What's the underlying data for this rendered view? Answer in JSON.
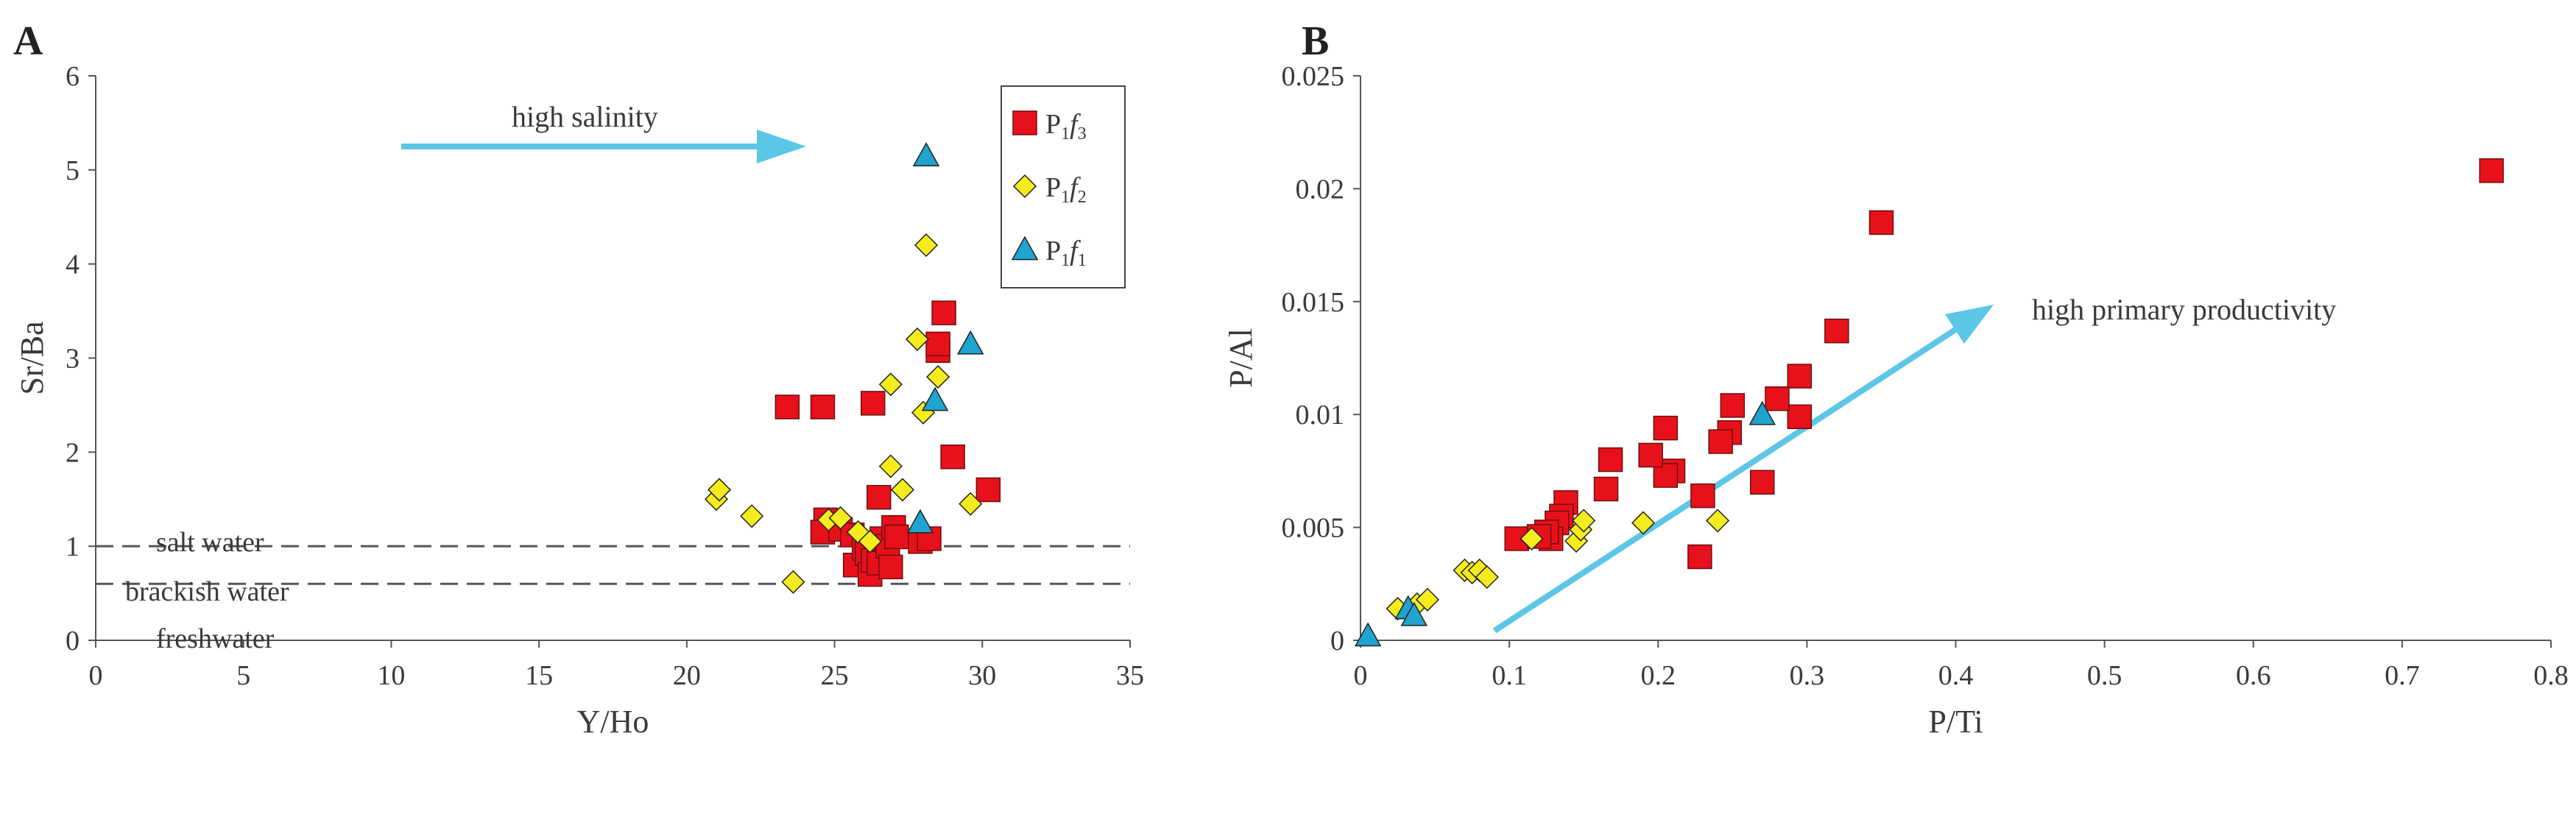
{
  "colors": {
    "p3": "#e8111b",
    "p2": "#f5ec1e",
    "p1": "#1fa3cf",
    "arrow": "#5cc6e6",
    "axis": "#555555"
  },
  "chart_data": [
    {
      "type": "scatter",
      "panel": "A",
      "xlabel": "Y/Ho",
      "ylabel": "Sr/Ba",
      "xlim": [
        0,
        35
      ],
      "ylim": [
        0,
        6
      ],
      "xticks": [
        "0",
        "5",
        "10",
        "15",
        "20",
        "25",
        "30",
        "35"
      ],
      "yticks": [
        "0",
        "1",
        "2",
        "3",
        "4",
        "5",
        "6"
      ],
      "grid": false,
      "legend_position": "top-right",
      "legend": [
        {
          "key": "p3",
          "base": "P",
          "sub": "1",
          "ital": "f",
          "sub2": "3",
          "marker": "square"
        },
        {
          "key": "p2",
          "base": "P",
          "sub": "1",
          "ital": "f",
          "sub2": "2",
          "marker": "diamond"
        },
        {
          "key": "p1",
          "base": "P",
          "sub": "1",
          "ital": "f",
          "sub2": "1",
          "marker": "triangle"
        }
      ],
      "reference_lines": [
        {
          "y": 1.0
        },
        {
          "y": 0.6
        }
      ],
      "zone_labels": [
        "salt water",
        "brackish water",
        "freshwater"
      ],
      "annotation": "high salinity",
      "series": [
        {
          "key": "p3",
          "marker": "square",
          "points": [
            [
              23.4,
              2.48
            ],
            [
              24.6,
              2.48
            ],
            [
              26.3,
              2.52
            ],
            [
              26.5,
              1.52
            ],
            [
              24.7,
              1.28
            ],
            [
              24.6,
              1.15
            ],
            [
              25.2,
              1.18
            ],
            [
              25.6,
              1.12
            ],
            [
              25.7,
              0.8
            ],
            [
              26.0,
              0.98
            ],
            [
              26.1,
              0.92
            ],
            [
              26.2,
              0.7
            ],
            [
              26.3,
              0.85
            ],
            [
              26.5,
              0.82
            ],
            [
              26.6,
              1.08
            ],
            [
              26.8,
              1.0
            ],
            [
              26.9,
              0.78
            ],
            [
              27.0,
              1.2
            ],
            [
              27.1,
              1.1
            ],
            [
              27.9,
              1.05
            ],
            [
              28.2,
              1.08
            ],
            [
              28.5,
              3.08
            ],
            [
              28.5,
              3.15
            ],
            [
              28.7,
              3.48
            ],
            [
              29.0,
              1.95
            ],
            [
              30.2,
              1.6
            ]
          ]
        },
        {
          "key": "p2",
          "marker": "diamond",
          "points": [
            [
              21.0,
              1.5
            ],
            [
              21.1,
              1.6
            ],
            [
              22.2,
              1.32
            ],
            [
              23.6,
              0.62
            ],
            [
              24.8,
              1.28
            ],
            [
              25.2,
              1.3
            ],
            [
              25.8,
              1.15
            ],
            [
              26.2,
              1.05
            ],
            [
              26.9,
              1.85
            ],
            [
              26.9,
              2.72
            ],
            [
              27.3,
              1.6
            ],
            [
              27.8,
              3.2
            ],
            [
              28.0,
              2.42
            ],
            [
              28.1,
              4.2
            ],
            [
              28.5,
              2.8
            ],
            [
              29.6,
              1.45
            ]
          ]
        },
        {
          "key": "p1",
          "marker": "triangle",
          "points": [
            [
              28.1,
              5.15
            ],
            [
              28.4,
              2.55
            ],
            [
              27.9,
              1.25
            ],
            [
              29.6,
              3.15
            ]
          ]
        }
      ]
    },
    {
      "type": "scatter",
      "panel": "B",
      "xlabel": "P/Ti",
      "ylabel": "P/Al",
      "xlim": [
        0,
        0.8
      ],
      "ylim": [
        0,
        0.025
      ],
      "xticks": [
        "0",
        "0.1",
        "0.2",
        "0.3",
        "0.4",
        "0.5",
        "0.6",
        "0.7",
        "0.8"
      ],
      "yticks": [
        "0",
        "0.005",
        "0.01",
        "0.015",
        "0.02",
        "0.025"
      ],
      "grid": false,
      "annotation": "high primary productivity",
      "series": [
        {
          "key": "p3",
          "marker": "square",
          "points": [
            [
              0.76,
              0.0208
            ],
            [
              0.35,
              0.0185
            ],
            [
              0.32,
              0.0137
            ],
            [
              0.295,
              0.0117
            ],
            [
              0.295,
              0.0099
            ],
            [
              0.28,
              0.0107
            ],
            [
              0.27,
              0.007
            ],
            [
              0.25,
              0.0104
            ],
            [
              0.248,
              0.0092
            ],
            [
              0.242,
              0.0088
            ],
            [
              0.23,
              0.0064
            ],
            [
              0.228,
              0.0037
            ],
            [
              0.21,
              0.0075
            ],
            [
              0.205,
              0.0094
            ],
            [
              0.205,
              0.0073
            ],
            [
              0.195,
              0.0082
            ],
            [
              0.168,
              0.008
            ],
            [
              0.165,
              0.0067
            ],
            [
              0.138,
              0.0061
            ],
            [
              0.135,
              0.0055
            ],
            [
              0.132,
              0.0052
            ],
            [
              0.128,
              0.0045
            ],
            [
              0.125,
              0.0048
            ],
            [
              0.105,
              0.0045
            ],
            [
              0.12,
              0.0046
            ]
          ]
        },
        {
          "key": "p2",
          "marker": "diamond",
          "points": [
            [
              0.025,
              0.0014
            ],
            [
              0.038,
              0.0016
            ],
            [
              0.045,
              0.0018
            ],
            [
              0.07,
              0.0031
            ],
            [
              0.075,
              0.003
            ],
            [
              0.08,
              0.0031
            ],
            [
              0.085,
              0.0028
            ],
            [
              0.115,
              0.0045
            ],
            [
              0.145,
              0.0044
            ],
            [
              0.148,
              0.0049
            ],
            [
              0.15,
              0.0053
            ],
            [
              0.19,
              0.0052
            ],
            [
              0.24,
              0.0053
            ]
          ]
        },
        {
          "key": "p1",
          "marker": "triangle",
          "points": [
            [
              0.005,
              0.0002
            ],
            [
              0.032,
              0.0014
            ],
            [
              0.036,
              0.0011
            ],
            [
              0.27,
              0.01
            ]
          ]
        }
      ]
    }
  ]
}
